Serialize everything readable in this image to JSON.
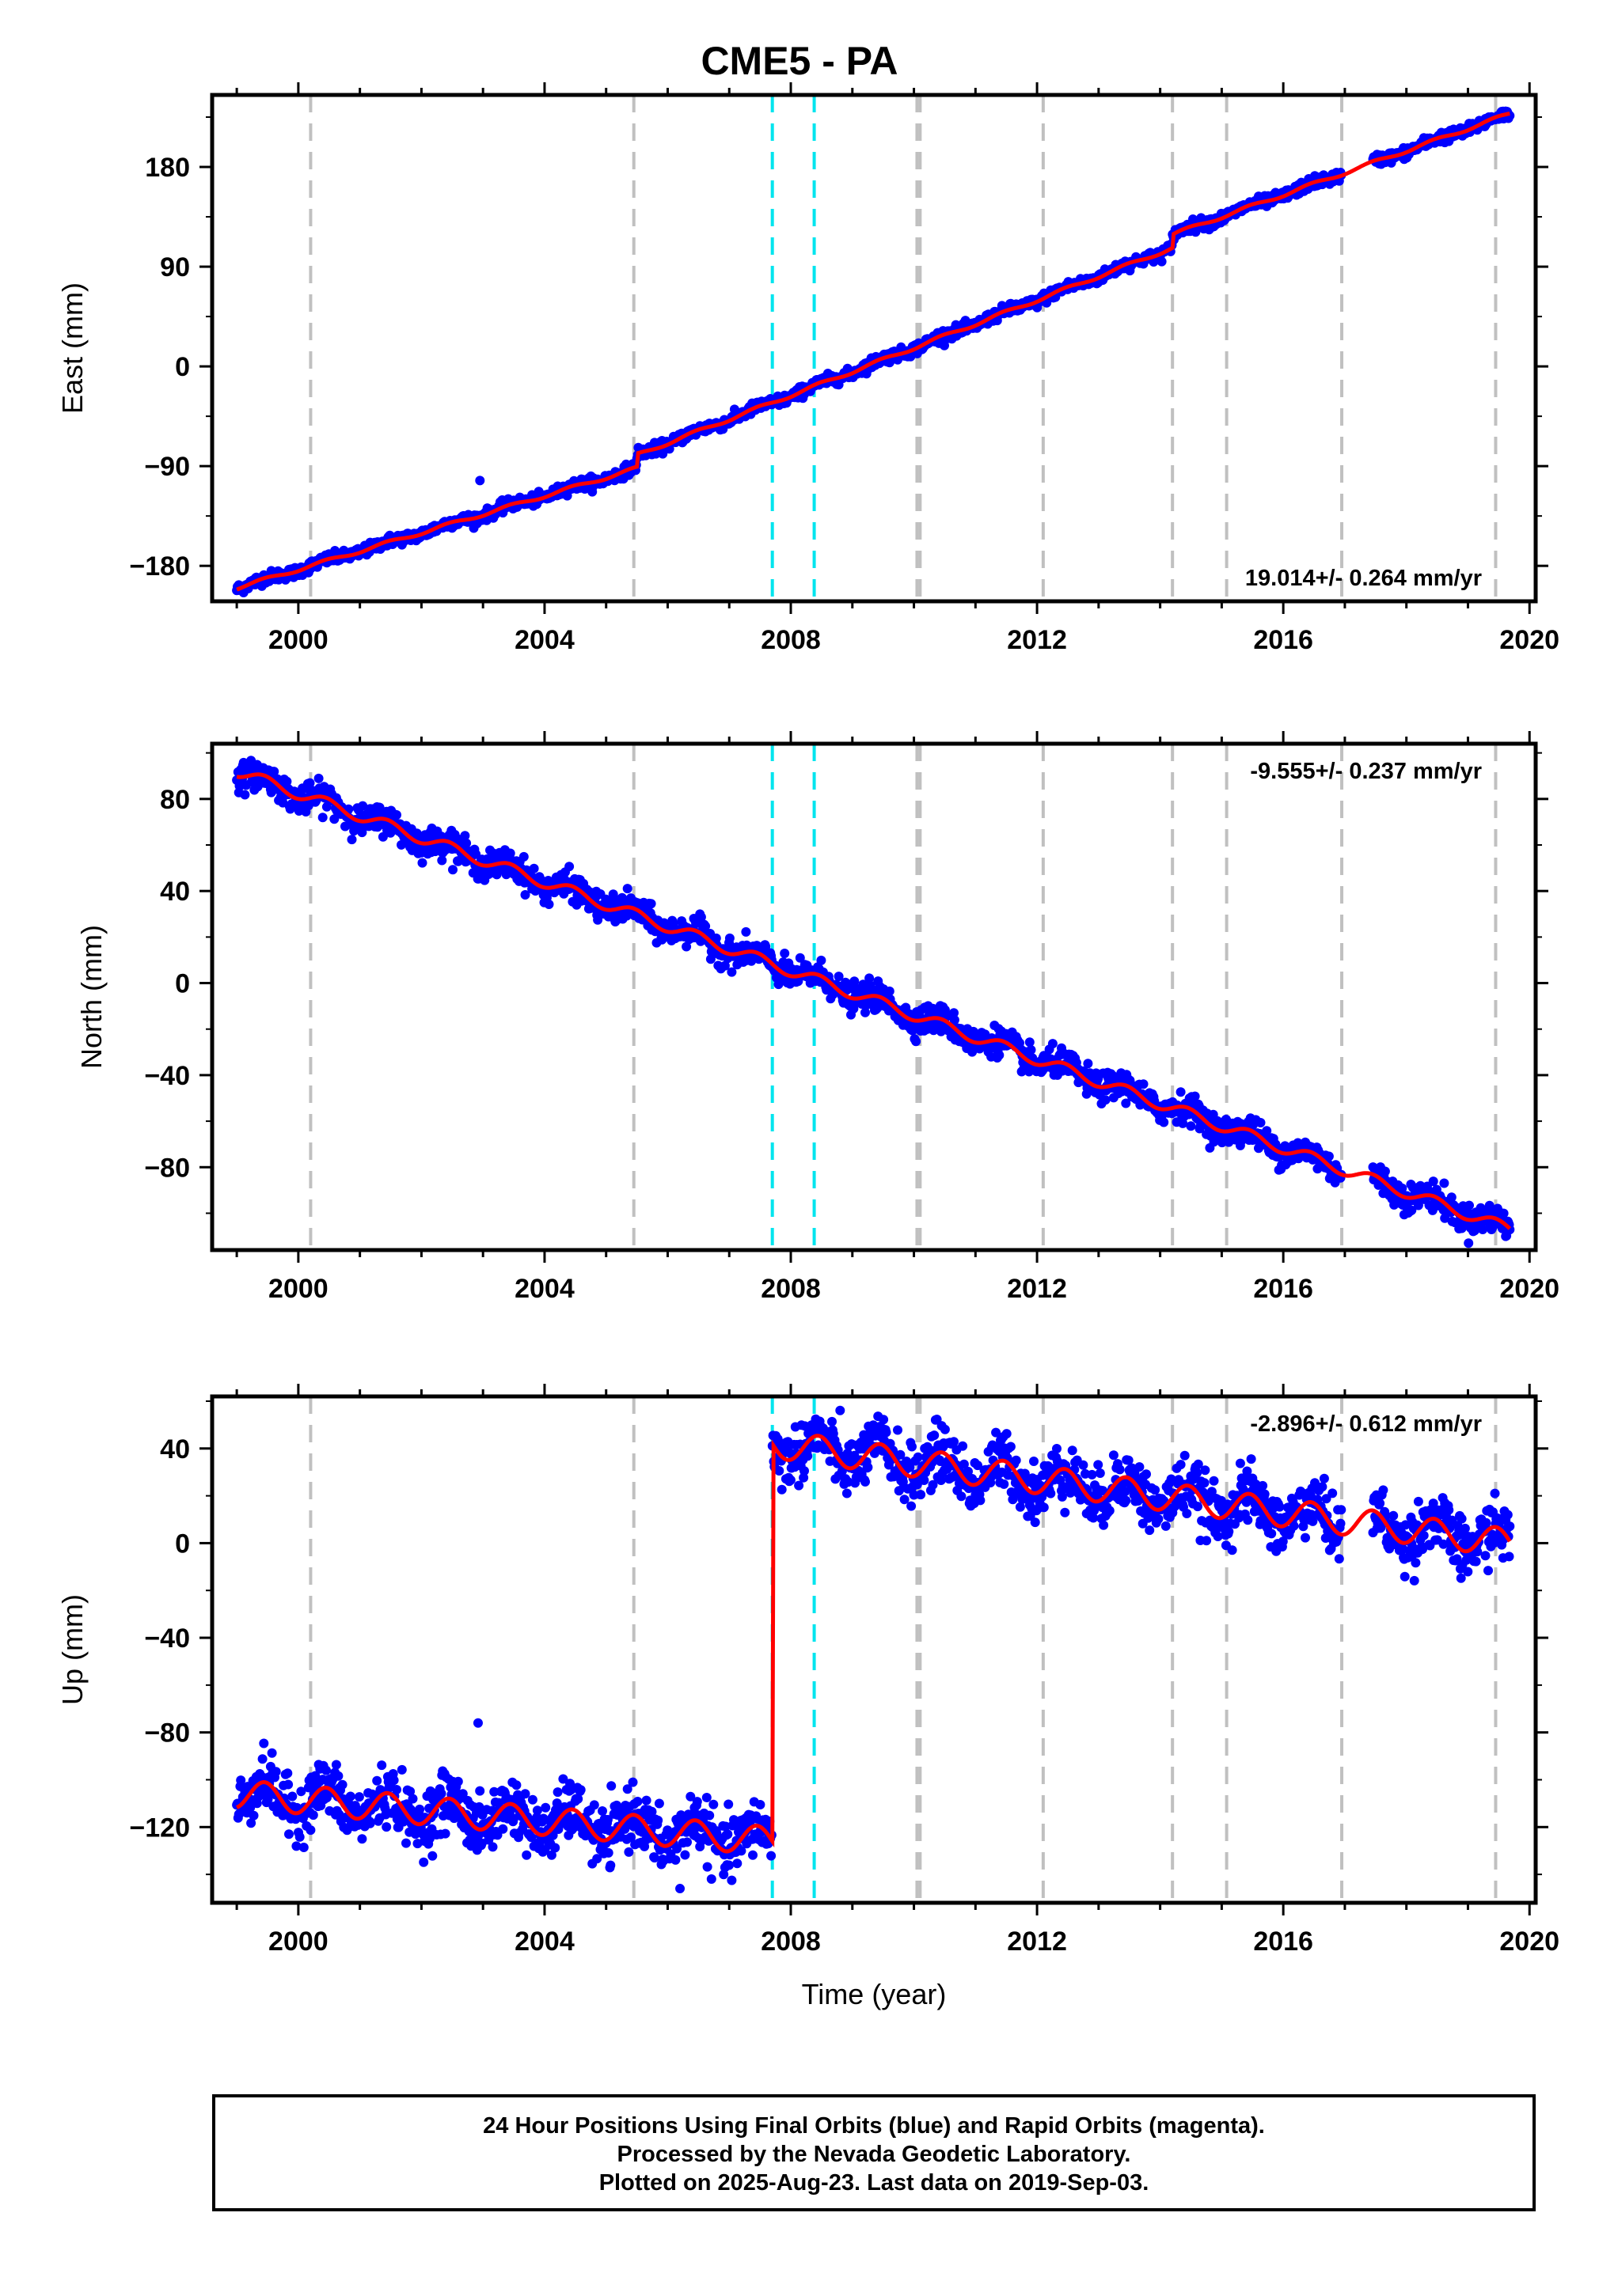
{
  "title": "CME5 - PA",
  "footer": {
    "line1": "24 Hour Positions Using Final Orbits (blue) and Rapid Orbits (magenta).",
    "line2": "Processed by the Nevada Geodetic Laboratory.",
    "line3": "Plotted on 2025-Aug-23. Last data on 2019-Sep-03."
  },
  "colors": {
    "data_points": "#0000ff",
    "model_fit": "#ff0000",
    "equipment_change_lines": "#c0c0c0",
    "earthquake_lines": "#00e5ee"
  },
  "chart_data": [
    {
      "type": "scatter",
      "ylabel": "East (mm)",
      "xlabel": "",
      "xlim": [
        1998.6,
        2020.1
      ],
      "ylim": [
        -212,
        245
      ],
      "xticks": [
        "2000",
        "2004",
        "2008",
        "2012",
        "2016",
        "2020"
      ],
      "yticks": [
        "-180",
        "-90",
        "0",
        "90",
        "180"
      ],
      "rate_text": "19.014+/- 0.264 mm/yr",
      "rate_position": "bottom-right",
      "data_start": 1999.0,
      "data_end": 2019.68,
      "gap": [
        2016.95,
        2017.45
      ],
      "scatter_sigma": 2.5,
      "fit_segments": [
        {
          "x": [
            1999.0,
            2005.5
          ],
          "y": [
            -200,
            -92
          ]
        },
        {
          "x": [
            2005.5,
            2014.2
          ],
          "y": [
            -80,
            107
          ]
        },
        {
          "x": [
            2014.2,
            2019.68
          ],
          "y": [
            119,
            228
          ]
        }
      ],
      "seasonal_amplitude": 1.5,
      "outliers": [
        {
          "x": 2002.95,
          "y": -103
        }
      ],
      "equipment_changes": [
        2000.2,
        2005.45,
        2010.05,
        2010.1,
        2012.1,
        2014.2,
        2015.08,
        2016.95,
        2019.45
      ],
      "earthquakes": [
        2007.7,
        2008.38
      ]
    },
    {
      "type": "scatter",
      "ylabel": "North (mm)",
      "xlabel": "",
      "xlim": [
        1998.6,
        2020.1
      ],
      "ylim": [
        -116,
        104
      ],
      "xticks": [
        "2000",
        "2004",
        "2008",
        "2012",
        "2016",
        "2020"
      ],
      "yticks": [
        "-80",
        "-40",
        "0",
        "40",
        "80"
      ],
      "rate_text": "-9.555+/- 0.237 mm/yr",
      "rate_position": "top-right",
      "data_start": 1999.0,
      "data_end": 2019.68,
      "gap": [
        2016.95,
        2017.45
      ],
      "scatter_sigma": 3,
      "fit_segments": [
        {
          "x": [
            1999.0,
            2019.68
          ],
          "y": [
            92,
            -107
          ]
        }
      ],
      "seasonal_amplitude": 2.5,
      "outliers": [],
      "equipment_changes": [
        2000.2,
        2005.45,
        2010.05,
        2010.1,
        2012.1,
        2014.2,
        2015.08,
        2016.95,
        2019.45
      ],
      "earthquakes": [
        2007.7,
        2008.38
      ]
    },
    {
      "type": "scatter",
      "ylabel": "Up (mm)",
      "xlabel": "Time (year)",
      "xlim": [
        1998.6,
        2020.1
      ],
      "ylim": [
        -152,
        62
      ],
      "xticks": [
        "2000",
        "2004",
        "2008",
        "2012",
        "2016",
        "2020"
      ],
      "yticks": [
        "-120",
        "-80",
        "-40",
        "0",
        "40"
      ],
      "rate_text": "-2.896+/- 0.612 mm/yr",
      "rate_position": "top-right",
      "data_start": 1999.0,
      "data_end": 2019.68,
      "gap": [
        2016.95,
        2017.45
      ],
      "scatter_sigma": 6,
      "fit_segments": [
        {
          "x": [
            1999.0,
            2007.7
          ],
          "y": [
            -106,
            -126
          ]
        },
        {
          "x": [
            2007.7,
            2019.68
          ],
          "y": [
            42,
            0
          ]
        }
      ],
      "seasonal_amplitude": 6,
      "outliers": [
        {
          "x": 2002.92,
          "y": -76
        },
        {
          "x": 2006.2,
          "y": -146
        }
      ],
      "equipment_changes": [
        2000.2,
        2005.45,
        2010.05,
        2010.1,
        2012.1,
        2014.2,
        2015.08,
        2016.95,
        2019.45
      ],
      "earthquakes": [
        2007.7,
        2008.38
      ]
    }
  ]
}
